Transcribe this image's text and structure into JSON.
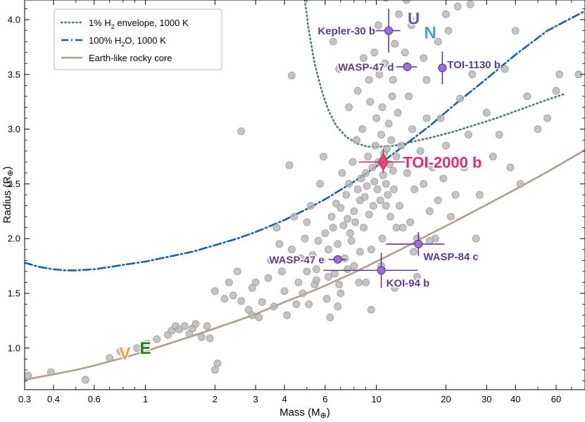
{
  "chart_data": {
    "type": "scatter",
    "x_scale": "log",
    "xlim": [
      0.3,
      80
    ],
    "ylim": [
      0.62,
      4.18
    ],
    "xlabel_main": "Mass (M",
    "xlabel_symbol": "⊕",
    "xlabel_close": ")",
    "ylabel_main": "Radius (R",
    "ylabel_symbol": "⊕",
    "ylabel_close": ")",
    "x_ticks": [
      {
        "value": 0.3,
        "label": "0.3"
      },
      {
        "value": 0.4,
        "label": "0.4"
      },
      {
        "value": 0.6,
        "label": "0.6"
      },
      {
        "value": 1,
        "label": "1"
      },
      {
        "value": 2,
        "label": "2"
      },
      {
        "value": 3,
        "label": "3"
      },
      {
        "value": 4,
        "label": "4"
      },
      {
        "value": 6,
        "label": "6"
      },
      {
        "value": 10,
        "label": "10"
      },
      {
        "value": 20,
        "label": "20"
      },
      {
        "value": 30,
        "label": "30"
      },
      {
        "value": 40,
        "label": "40"
      },
      {
        "value": 60,
        "label": "60"
      }
    ],
    "y_ticks": [
      {
        "value": 1.0,
        "label": "1.0"
      },
      {
        "value": 1.5,
        "label": "1.5"
      },
      {
        "value": 2.0,
        "label": "2.0"
      },
      {
        "value": 2.5,
        "label": "2.5"
      },
      {
        "value": 3.0,
        "label": "3.0"
      },
      {
        "value": 3.5,
        "label": "3.5"
      },
      {
        "value": 4.0,
        "label": "4.0"
      }
    ],
    "legend": {
      "position": "top-left",
      "entries": [
        {
          "main": "1% H",
          "sub": "2",
          "rest": " envelope, 1000 K",
          "color": "#4e7d6c",
          "style": "dotted"
        },
        {
          "main": "100% H",
          "sub": "2",
          "rest": "O, 1000 K",
          "color": "#1a5fa8",
          "style": "dashdot"
        },
        {
          "main": "Earth-like rocky core",
          "sub": "",
          "rest": "",
          "color": "#b19e8c",
          "style": "solid"
        }
      ]
    },
    "models": [
      {
        "name": "1% H2 envelope, 1000 K",
        "color": "#4e7d6c",
        "style": "dotted",
        "x": [
          4.9,
          5.1,
          5.4,
          5.8,
          6.2,
          6.7,
          7.4,
          8.2,
          9.2,
          10.5,
          12,
          14,
          17,
          21,
          26,
          33,
          42,
          55,
          65
        ],
        "y": [
          4.18,
          3.9,
          3.6,
          3.35,
          3.17,
          3.03,
          2.93,
          2.87,
          2.84,
          2.84,
          2.85,
          2.88,
          2.92,
          2.97,
          3.03,
          3.1,
          3.18,
          3.27,
          3.32
        ]
      },
      {
        "name": "100% H2O, 1000 K",
        "color": "#1a5fa8",
        "style": "dashdot",
        "x": [
          0.3,
          0.35,
          0.4,
          0.45,
          0.5,
          0.6,
          0.7,
          0.8,
          1,
          1.3,
          1.6,
          2,
          2.5,
          3,
          4,
          5,
          6,
          8,
          10,
          13,
          17,
          22,
          30,
          40,
          55,
          80
        ],
        "y": [
          1.78,
          1.74,
          1.72,
          1.71,
          1.71,
          1.72,
          1.74,
          1.76,
          1.79,
          1.84,
          1.88,
          1.94,
          2.0,
          2.06,
          2.17,
          2.27,
          2.36,
          2.52,
          2.66,
          2.84,
          3.03,
          3.23,
          3.46,
          3.68,
          3.9,
          4.08
        ]
      },
      {
        "name": "Earth-like rocky core",
        "color": "#b19e8c",
        "style": "solid",
        "x": [
          0.3,
          0.4,
          0.5,
          0.6,
          0.8,
          1,
          1.3,
          1.6,
          2,
          2.5,
          3,
          4,
          5,
          6,
          8,
          10,
          13,
          17,
          22,
          30,
          40,
          55,
          80
        ],
        "y": [
          0.71,
          0.76,
          0.8,
          0.84,
          0.91,
          0.97,
          1.05,
          1.11,
          1.18,
          1.25,
          1.31,
          1.42,
          1.5,
          1.57,
          1.69,
          1.79,
          1.91,
          2.04,
          2.16,
          2.31,
          2.45,
          2.61,
          2.81
        ]
      }
    ],
    "population": {
      "name": "Known small planets",
      "color": "#b5b5b5",
      "points": [
        [
          0.31,
          0.75
        ],
        [
          0.39,
          0.78
        ],
        [
          0.55,
          0.71
        ],
        [
          0.7,
          0.91
        ],
        [
          0.78,
          0.97
        ],
        [
          0.92,
          1.0
        ],
        [
          1.02,
          1.04
        ],
        [
          1.12,
          1.08
        ],
        [
          1.25,
          1.12
        ],
        [
          1.3,
          1.16
        ],
        [
          1.35,
          1.2
        ],
        [
          1.4,
          1.17
        ],
        [
          1.48,
          1.2
        ],
        [
          1.55,
          1.13
        ],
        [
          1.6,
          1.18
        ],
        [
          1.65,
          1.22
        ],
        [
          1.75,
          1.1
        ],
        [
          1.85,
          1.2
        ],
        [
          1.9,
          1.09
        ],
        [
          2.0,
          0.8
        ],
        [
          2.05,
          0.86
        ],
        [
          2.0,
          1.52
        ],
        [
          2.2,
          1.45
        ],
        [
          2.3,
          1.6
        ],
        [
          2.4,
          1.48
        ],
        [
          2.6,
          1.43
        ],
        [
          2.8,
          1.35
        ],
        [
          2.9,
          1.3
        ],
        [
          2.6,
          2.98
        ],
        [
          3.1,
          1.28
        ],
        [
          3.0,
          1.6
        ],
        [
          3.2,
          1.42
        ],
        [
          3.4,
          1.64
        ],
        [
          3.5,
          1.8
        ],
        [
          3.6,
          1.38
        ],
        [
          3.8,
          1.95
        ],
        [
          3.9,
          1.7
        ],
        [
          4.0,
          1.52
        ],
        [
          4.1,
          1.3
        ],
        [
          4.2,
          2.67
        ],
        [
          4.3,
          1.9
        ],
        [
          4.4,
          2.2
        ],
        [
          4.3,
          3.49
        ],
        [
          4.6,
          1.6
        ],
        [
          4.7,
          1.82
        ],
        [
          4.8,
          1.5
        ],
        [
          4.9,
          2.0
        ],
        [
          5.0,
          1.7
        ],
        [
          5.1,
          1.4
        ],
        [
          5.2,
          2.3
        ],
        [
          5.3,
          1.85
        ],
        [
          5.4,
          1.58
        ],
        [
          5.5,
          1.62
        ],
        [
          5.6,
          1.98
        ],
        [
          5.7,
          2.5
        ],
        [
          5.8,
          1.8
        ],
        [
          5.9,
          2.75
        ],
        [
          6.0,
          2.05
        ],
        [
          6.1,
          1.45
        ],
        [
          6.2,
          1.9
        ],
        [
          6.3,
          1.28
        ],
        [
          6.4,
          2.2
        ],
        [
          6.5,
          2.1
        ],
        [
          6.6,
          1.68
        ],
        [
          6.7,
          2.32
        ],
        [
          6.8,
          1.95
        ],
        [
          6.9,
          1.58
        ],
        [
          7.0,
          2.28
        ],
        [
          7.1,
          2.6
        ],
        [
          7.2,
          2.12
        ],
        [
          7.3,
          1.82
        ],
        [
          7.4,
          2.4
        ],
        [
          7.5,
          1.72
        ],
        [
          7.6,
          2.5
        ],
        [
          7.7,
          2.05
        ],
        [
          7.8,
          1.98
        ],
        [
          7.9,
          2.7
        ],
        [
          8.0,
          2.25
        ],
        [
          8.1,
          2.15
        ],
        [
          8.2,
          2.9
        ],
        [
          8.3,
          2.45
        ],
        [
          8.4,
          1.6
        ],
        [
          8.5,
          2.35
        ],
        [
          8.6,
          2.55
        ],
        [
          8.7,
          3.0
        ],
        [
          8.8,
          2.1
        ],
        [
          8.9,
          2.38
        ],
        [
          9.0,
          2.6
        ],
        [
          9.1,
          2.48
        ],
        [
          9.2,
          2.75
        ],
        [
          9.3,
          2.22
        ],
        [
          9.4,
          3.25
        ],
        [
          9.5,
          1.35
        ],
        [
          9.6,
          2.65
        ],
        [
          9.7,
          2.3
        ],
        [
          9.8,
          2.52
        ],
        [
          9.9,
          2.85
        ],
        [
          10.0,
          3.1
        ],
        [
          10.1,
          2.45
        ],
        [
          10.2,
          2.7
        ],
        [
          10.3,
          3.5
        ],
        [
          10.4,
          2.35
        ],
        [
          10.5,
          2.95
        ],
        [
          10.6,
          3.2
        ],
        [
          10.7,
          2.58
        ],
        [
          10.8,
          2.78
        ],
        [
          10.9,
          3.6
        ],
        [
          11.0,
          2.5
        ],
        [
          11.1,
          2.82
        ],
        [
          11.2,
          2.4
        ],
        [
          11.3,
          3.05
        ],
        [
          11.4,
          2.68
        ],
        [
          11.5,
          2.2
        ],
        [
          11.6,
          2.9
        ],
        [
          11.7,
          3.3
        ],
        [
          11.8,
          2.62
        ],
        [
          11.9,
          2.45
        ],
        [
          12.0,
          3.78
        ],
        [
          12.2,
          2.75
        ],
        [
          12.4,
          3.15
        ],
        [
          12.6,
          2.3
        ],
        [
          12.8,
          2.85
        ],
        [
          13.0,
          2.1
        ],
        [
          13.3,
          3.7
        ],
        [
          13.6,
          2.6
        ],
        [
          14.0,
          2.15
        ],
        [
          14.3,
          3.0
        ],
        [
          14.6,
          2.45
        ],
        [
          15.0,
          2.0
        ],
        [
          15.5,
          2.8
        ],
        [
          16.0,
          2.5
        ],
        [
          16.5,
          3.45
        ],
        [
          17.0,
          2.25
        ],
        [
          17.5,
          2.65
        ],
        [
          18.0,
          2.0
        ],
        [
          18.5,
          2.35
        ],
        [
          19.0,
          3.1
        ],
        [
          19.5,
          2.55
        ],
        [
          20.0,
          2.85
        ],
        [
          20.5,
          3.9
        ],
        [
          21.0,
          2.2
        ],
        [
          22.0,
          2.4
        ],
        [
          23.0,
          3.28
        ],
        [
          24.0,
          2.65
        ],
        [
          25.0,
          2.95
        ],
        [
          26.0,
          3.5
        ],
        [
          27.0,
          2.0
        ],
        [
          28.0,
          2.4
        ],
        [
          30.0,
          3.15
        ],
        [
          32.0,
          2.75
        ],
        [
          34.0,
          2.95
        ],
        [
          36.0,
          3.55
        ],
        [
          38.0,
          2.65
        ],
        [
          40.0,
          3.9
        ],
        [
          42.0,
          2.5
        ],
        [
          45.0,
          3.3
        ],
        [
          50.0,
          3.0
        ],
        [
          55.0,
          3.1
        ],
        [
          60.0,
          3.35
        ],
        [
          62.0,
          3.5
        ],
        [
          75.0,
          3.5
        ],
        [
          11.0,
          4.2
        ],
        [
          13.5,
          4.18
        ],
        [
          20.0,
          4.05
        ],
        [
          22.5,
          4.12
        ],
        [
          25.5,
          4.14
        ],
        [
          10.5,
          1.75
        ],
        [
          12.0,
          1.55
        ],
        [
          15.0,
          1.65
        ],
        [
          9.0,
          1.6
        ],
        [
          7.0,
          1.5
        ],
        [
          6.2,
          1.65
        ],
        [
          5.5,
          1.72
        ],
        [
          6.8,
          1.38
        ],
        [
          8.0,
          1.75
        ],
        [
          9.5,
          1.9
        ],
        [
          5.0,
          2.15
        ],
        [
          4.5,
          1.4
        ],
        [
          3.7,
          2.1
        ],
        [
          2.9,
          1.55
        ],
        [
          2.5,
          1.7
        ],
        [
          10.6,
          2.0
        ],
        [
          12.2,
          2.1
        ],
        [
          14.5,
          1.88
        ],
        [
          17.0,
          1.98
        ],
        [
          8.5,
          1.88
        ],
        [
          7.5,
          2.18
        ],
        [
          11.0,
          2.3
        ],
        [
          9.3,
          3.45
        ],
        [
          8.3,
          3.35
        ],
        [
          6.5,
          3.8
        ],
        [
          10.2,
          3.95
        ],
        [
          12.5,
          4.05
        ],
        [
          16.0,
          3.65
        ],
        [
          18.5,
          3.8
        ],
        [
          7.6,
          3.2
        ],
        [
          8.8,
          3.65
        ],
        [
          11.8,
          3.45
        ],
        [
          13.8,
          3.3
        ],
        [
          16.5,
          3.1
        ],
        [
          9.8,
          3.7
        ],
        [
          6.9,
          3.55
        ],
        [
          14.2,
          3.95
        ]
      ]
    },
    "highlighted": [
      {
        "name": "TOI-2000 b",
        "mass": 10.7,
        "mass_err": [
          2.3,
          2.6
        ],
        "radius": 2.7,
        "radius_err": [
          0.1,
          0.12
        ],
        "color": "#e8457a",
        "hero": true,
        "label_pos": "right"
      },
      {
        "name": "Kepler-30 b",
        "mass": 11.3,
        "mass_err": [
          1.4,
          1.4
        ],
        "radius": 3.9,
        "radius_err": [
          0.2,
          0.2
        ],
        "color": "#9a6fe0",
        "label_pos": "left"
      },
      {
        "name": "WASP-47 d",
        "mass": 13.6,
        "mass_err": [
          1.4,
          1.4
        ],
        "radius": 3.57,
        "radius_err": [
          0.04,
          0.04
        ],
        "color": "#9a6fe0",
        "label_pos": "left"
      },
      {
        "name": "TOI-1130 b",
        "mass": 19.3,
        "mass_err": [
          0.01,
          0.01
        ],
        "radius": 3.56,
        "radius_err": [
          0.15,
          0.15
        ],
        "color": "#9a6fe0",
        "label_pos": "right"
      },
      {
        "name": "WASP-84 c",
        "mass": 15.2,
        "mass_err": [
          4.2,
          4.5
        ],
        "radius": 1.95,
        "radius_err": [
          0.11,
          0.11
        ],
        "color": "#9a6fe0",
        "label_pos": "right-below"
      },
      {
        "name": "WASP-47 e",
        "mass": 6.8,
        "mass_err": [
          0.6,
          0.6
        ],
        "radius": 1.81,
        "radius_err": [
          0.03,
          0.03
        ],
        "color": "#9a6fe0",
        "label_pos": "left"
      },
      {
        "name": "KOI-94 b",
        "mass": 10.5,
        "mass_err": [
          4.6,
          4.6
        ],
        "radius": 1.71,
        "radius_err": [
          0.16,
          0.16
        ],
        "color": "#9a6fe0",
        "label_pos": "right-below"
      }
    ],
    "label_color": "#5a3e90",
    "hero_label_color": "#e02a72",
    "solar_system": [
      {
        "letter": "V",
        "name": "Venus",
        "mass": 0.815,
        "radius": 0.95,
        "color": "#f2a23c"
      },
      {
        "letter": "E",
        "name": "Earth",
        "mass": 1.0,
        "radius": 1.0,
        "color": "#27771c"
      },
      {
        "letter": "U",
        "name": "Uranus",
        "mass": 14.5,
        "radius": 4.01,
        "color": "#5b62b0"
      },
      {
        "letter": "N",
        "name": "Neptune",
        "mass": 17.1,
        "radius": 3.88,
        "color": "#4aa1c2"
      }
    ]
  }
}
